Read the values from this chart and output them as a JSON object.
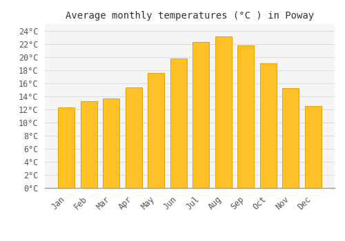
{
  "months": [
    "Jan",
    "Feb",
    "Mar",
    "Apr",
    "May",
    "Jun",
    "Jul",
    "Aug",
    "Sep",
    "Oct",
    "Nov",
    "Dec"
  ],
  "values": [
    12.3,
    13.2,
    13.7,
    15.3,
    17.5,
    19.7,
    22.3,
    23.1,
    21.7,
    19.0,
    15.2,
    12.5
  ],
  "bar_color": "#FFC125",
  "bar_edge_color": "#E8A000",
  "background_color": "#FFFFFF",
  "plot_bg_color": "#F5F5F5",
  "grid_color": "#DDDDDD",
  "title": "Average monthly temperatures (°C ) in Poway",
  "title_fontsize": 10,
  "tick_label_fontsize": 8.5,
  "ylim": [
    0,
    25
  ],
  "ytick_step": 2
}
